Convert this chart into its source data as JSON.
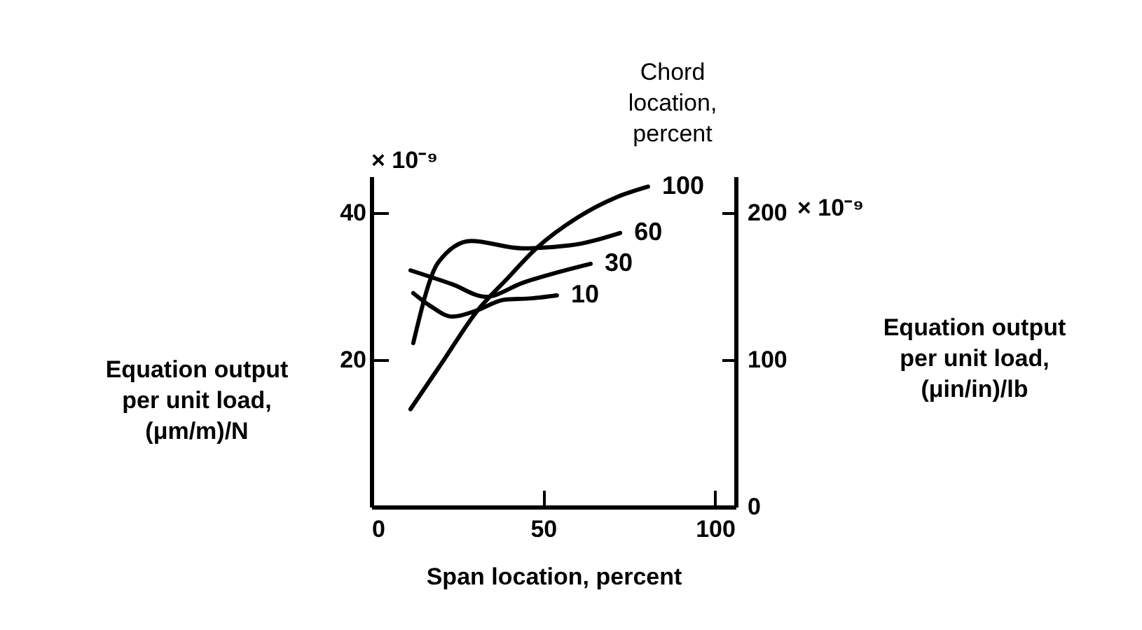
{
  "chart_data": {
    "type": "line",
    "xlabel": "Span location, percent",
    "ylabel": "Equation output per unit load, (μm/m)/N",
    "y2label": "Equation output per unit load, (μin/in)/lb",
    "legend_title": "Chord location, percent",
    "xlim": [
      0,
      106
    ],
    "xticks": [
      0,
      50,
      100
    ],
    "ylim": [
      0,
      45
    ],
    "yticks": [
      20,
      40
    ],
    "y2lim": [
      0,
      225
    ],
    "y2ticks": [
      0,
      100,
      200
    ],
    "annotations": [
      "× 10⁻⁹",
      "× 10⁻⁹"
    ],
    "grid": false,
    "legend": false,
    "marker": "none",
    "line_style": "solid",
    "series": [
      {
        "name": "10",
        "color": "#000000",
        "x": [
          12.2,
          17,
          23.6,
          30.5,
          38.6,
          46.7,
          54
        ],
        "values": [
          29.1,
          27.4,
          25.9,
          26.7,
          28.2,
          28.4,
          28.8
        ]
      },
      {
        "name": "30",
        "color": "#000000",
        "x": [
          11.4,
          23.6,
          33.3,
          44,
          63.8
        ],
        "values": [
          32.2,
          30.3,
          28.6,
          30.5,
          33.1
        ]
      },
      {
        "name": "60",
        "color": "#000000",
        "x": [
          12.2,
          19.5,
          29,
          44,
          57.7,
          72.4
        ],
        "values": [
          22.3,
          33.3,
          36.2,
          35.2,
          35.6,
          37.3
        ]
      },
      {
        "name": "100",
        "color": "#000000",
        "x": [
          11.4,
          21.1,
          30.5,
          39.8,
          48,
          60,
          71,
          80.5
        ],
        "values": [
          13.3,
          20,
          26.5,
          31.2,
          35.2,
          39.4,
          42.1,
          43.6
        ]
      }
    ]
  }
}
